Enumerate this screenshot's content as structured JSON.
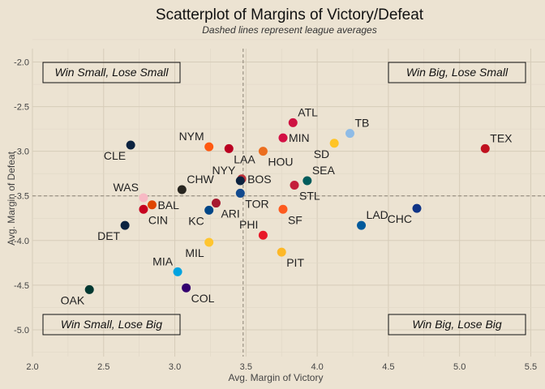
{
  "chart_data": {
    "type": "scatter",
    "title": "Scatterplot of Margins of Victory/Defeat",
    "subtitle": "Dashed lines represent league averages",
    "xlabel": "Avg. Margin of Victory",
    "ylabel": "Avg. Margin of Defeat",
    "xlim": [
      2.0,
      5.6
    ],
    "ylim": [
      -5.3,
      -1.85
    ],
    "x_ticks": [
      2.0,
      2.5,
      3.0,
      3.5,
      4.0,
      4.5,
      5.0,
      5.5
    ],
    "y_ticks": [
      -2.0,
      -2.5,
      -3.0,
      -3.5,
      -4.0,
      -4.5,
      -5.0
    ],
    "x_tick_labels": [
      "2.0",
      "2.5",
      "3.0",
      "3.5",
      "4.0",
      "4.5",
      "5.0",
      "5.5"
    ],
    "y_tick_labels": [
      "-2.0",
      "-2.5",
      "-3.0",
      "-3.5",
      "-4.0",
      "-4.5",
      "-5.0"
    ],
    "grid": true,
    "avg_x": 3.48,
    "avg_y": -3.5,
    "quadrant_labels": [
      {
        "text": "Win Small, Lose Small",
        "corner": "top-left"
      },
      {
        "text": "Win Big, Lose Small",
        "corner": "top-right"
      },
      {
        "text": "Win Small, Lose Big",
        "corner": "bottom-left"
      },
      {
        "text": "Win Big, Lose Big",
        "corner": "bottom-right"
      }
    ],
    "points": [
      {
        "team": "TEX",
        "x": 5.18,
        "y": -2.97,
        "color": "#c0111f",
        "label_pos": "upper-right"
      },
      {
        "team": "TB",
        "x": 4.23,
        "y": -2.8,
        "color": "#8fbce6",
        "label_pos": "upper-right"
      },
      {
        "team": "SD",
        "x": 4.12,
        "y": -2.91,
        "color": "#ffc425",
        "label_pos": "lower-left"
      },
      {
        "team": "ATL",
        "x": 3.83,
        "y": -2.68,
        "color": "#ce1141",
        "label_pos": "upper-right"
      },
      {
        "team": "MIN",
        "x": 3.76,
        "y": -2.85,
        "color": "#d31145",
        "label_pos": "right"
      },
      {
        "team": "HOU",
        "x": 3.62,
        "y": -3.0,
        "color": "#eb6e1f",
        "label_pos": "lower-right"
      },
      {
        "team": "NYM",
        "x": 3.24,
        "y": -2.95,
        "color": "#ff5910",
        "label_pos": "upper-left"
      },
      {
        "team": "LAA",
        "x": 3.38,
        "y": -2.97,
        "color": "#ba0021",
        "label_pos": "lower-right"
      },
      {
        "team": "CLE",
        "x": 2.69,
        "y": -2.93,
        "color": "#0c2340",
        "label_pos": "lower-left"
      },
      {
        "team": "SEA",
        "x": 3.93,
        "y": -3.33,
        "color": "#005c5c",
        "label_pos": "upper-right"
      },
      {
        "team": "STL",
        "x": 3.84,
        "y": -3.38,
        "color": "#c41e3a",
        "label_pos": "lower-right"
      },
      {
        "team": "BOS",
        "x": 3.47,
        "y": -3.31,
        "color": "#bd3039",
        "label_pos": "right"
      },
      {
        "team": "NYY",
        "x": 3.46,
        "y": -3.33,
        "color": "#0c2340",
        "label_pos": "upper-left"
      },
      {
        "team": "CHW",
        "x": 3.05,
        "y": -3.43,
        "color": "#27251f",
        "label_pos": "upper-right"
      },
      {
        "team": "TOR",
        "x": 3.46,
        "y": -3.47,
        "color": "#134a8e",
        "label_pos": "lower-right"
      },
      {
        "team": "ARI",
        "x": 3.29,
        "y": -3.58,
        "color": "#a71930",
        "label_pos": "lower-right"
      },
      {
        "team": "KC",
        "x": 3.24,
        "y": -3.66,
        "color": "#004687",
        "label_pos": "lower-left"
      },
      {
        "team": "WAS",
        "x": 2.78,
        "y": -3.52,
        "color": "#f7b9c4",
        "label_pos": "upper-left"
      },
      {
        "team": "BAL",
        "x": 2.84,
        "y": -3.6,
        "color": "#df4601",
        "label_pos": "right"
      },
      {
        "team": "CIN",
        "x": 2.78,
        "y": -3.65,
        "color": "#c6011f",
        "label_pos": "lower-right"
      },
      {
        "team": "DET",
        "x": 2.65,
        "y": -3.83,
        "color": "#0c2340",
        "label_pos": "lower-left"
      },
      {
        "team": "SF",
        "x": 3.76,
        "y": -3.65,
        "color": "#fd5a1e",
        "label_pos": "lower-right"
      },
      {
        "team": "PHI",
        "x": 3.62,
        "y": -3.94,
        "color": "#e81828",
        "label_pos": "upper-left"
      },
      {
        "team": "PIT",
        "x": 3.75,
        "y": -4.13,
        "color": "#fdb827",
        "label_pos": "lower-right"
      },
      {
        "team": "LAD",
        "x": 4.31,
        "y": -3.83,
        "color": "#005a9c",
        "label_pos": "upper-right"
      },
      {
        "team": "CHC",
        "x": 4.7,
        "y": -3.64,
        "color": "#0e3386",
        "label_pos": "lower-left"
      },
      {
        "team": "MIL",
        "x": 3.24,
        "y": -4.02,
        "color": "#ffc52f",
        "label_pos": "lower-left"
      },
      {
        "team": "MIA",
        "x": 3.02,
        "y": -4.35,
        "color": "#00a3e0",
        "label_pos": "upper-left"
      },
      {
        "team": "COL",
        "x": 3.08,
        "y": -4.53,
        "color": "#33006f",
        "label_pos": "lower-right"
      },
      {
        "team": "OAK",
        "x": 2.4,
        "y": -4.55,
        "color": "#003831",
        "label_pos": "lower-left"
      }
    ]
  }
}
